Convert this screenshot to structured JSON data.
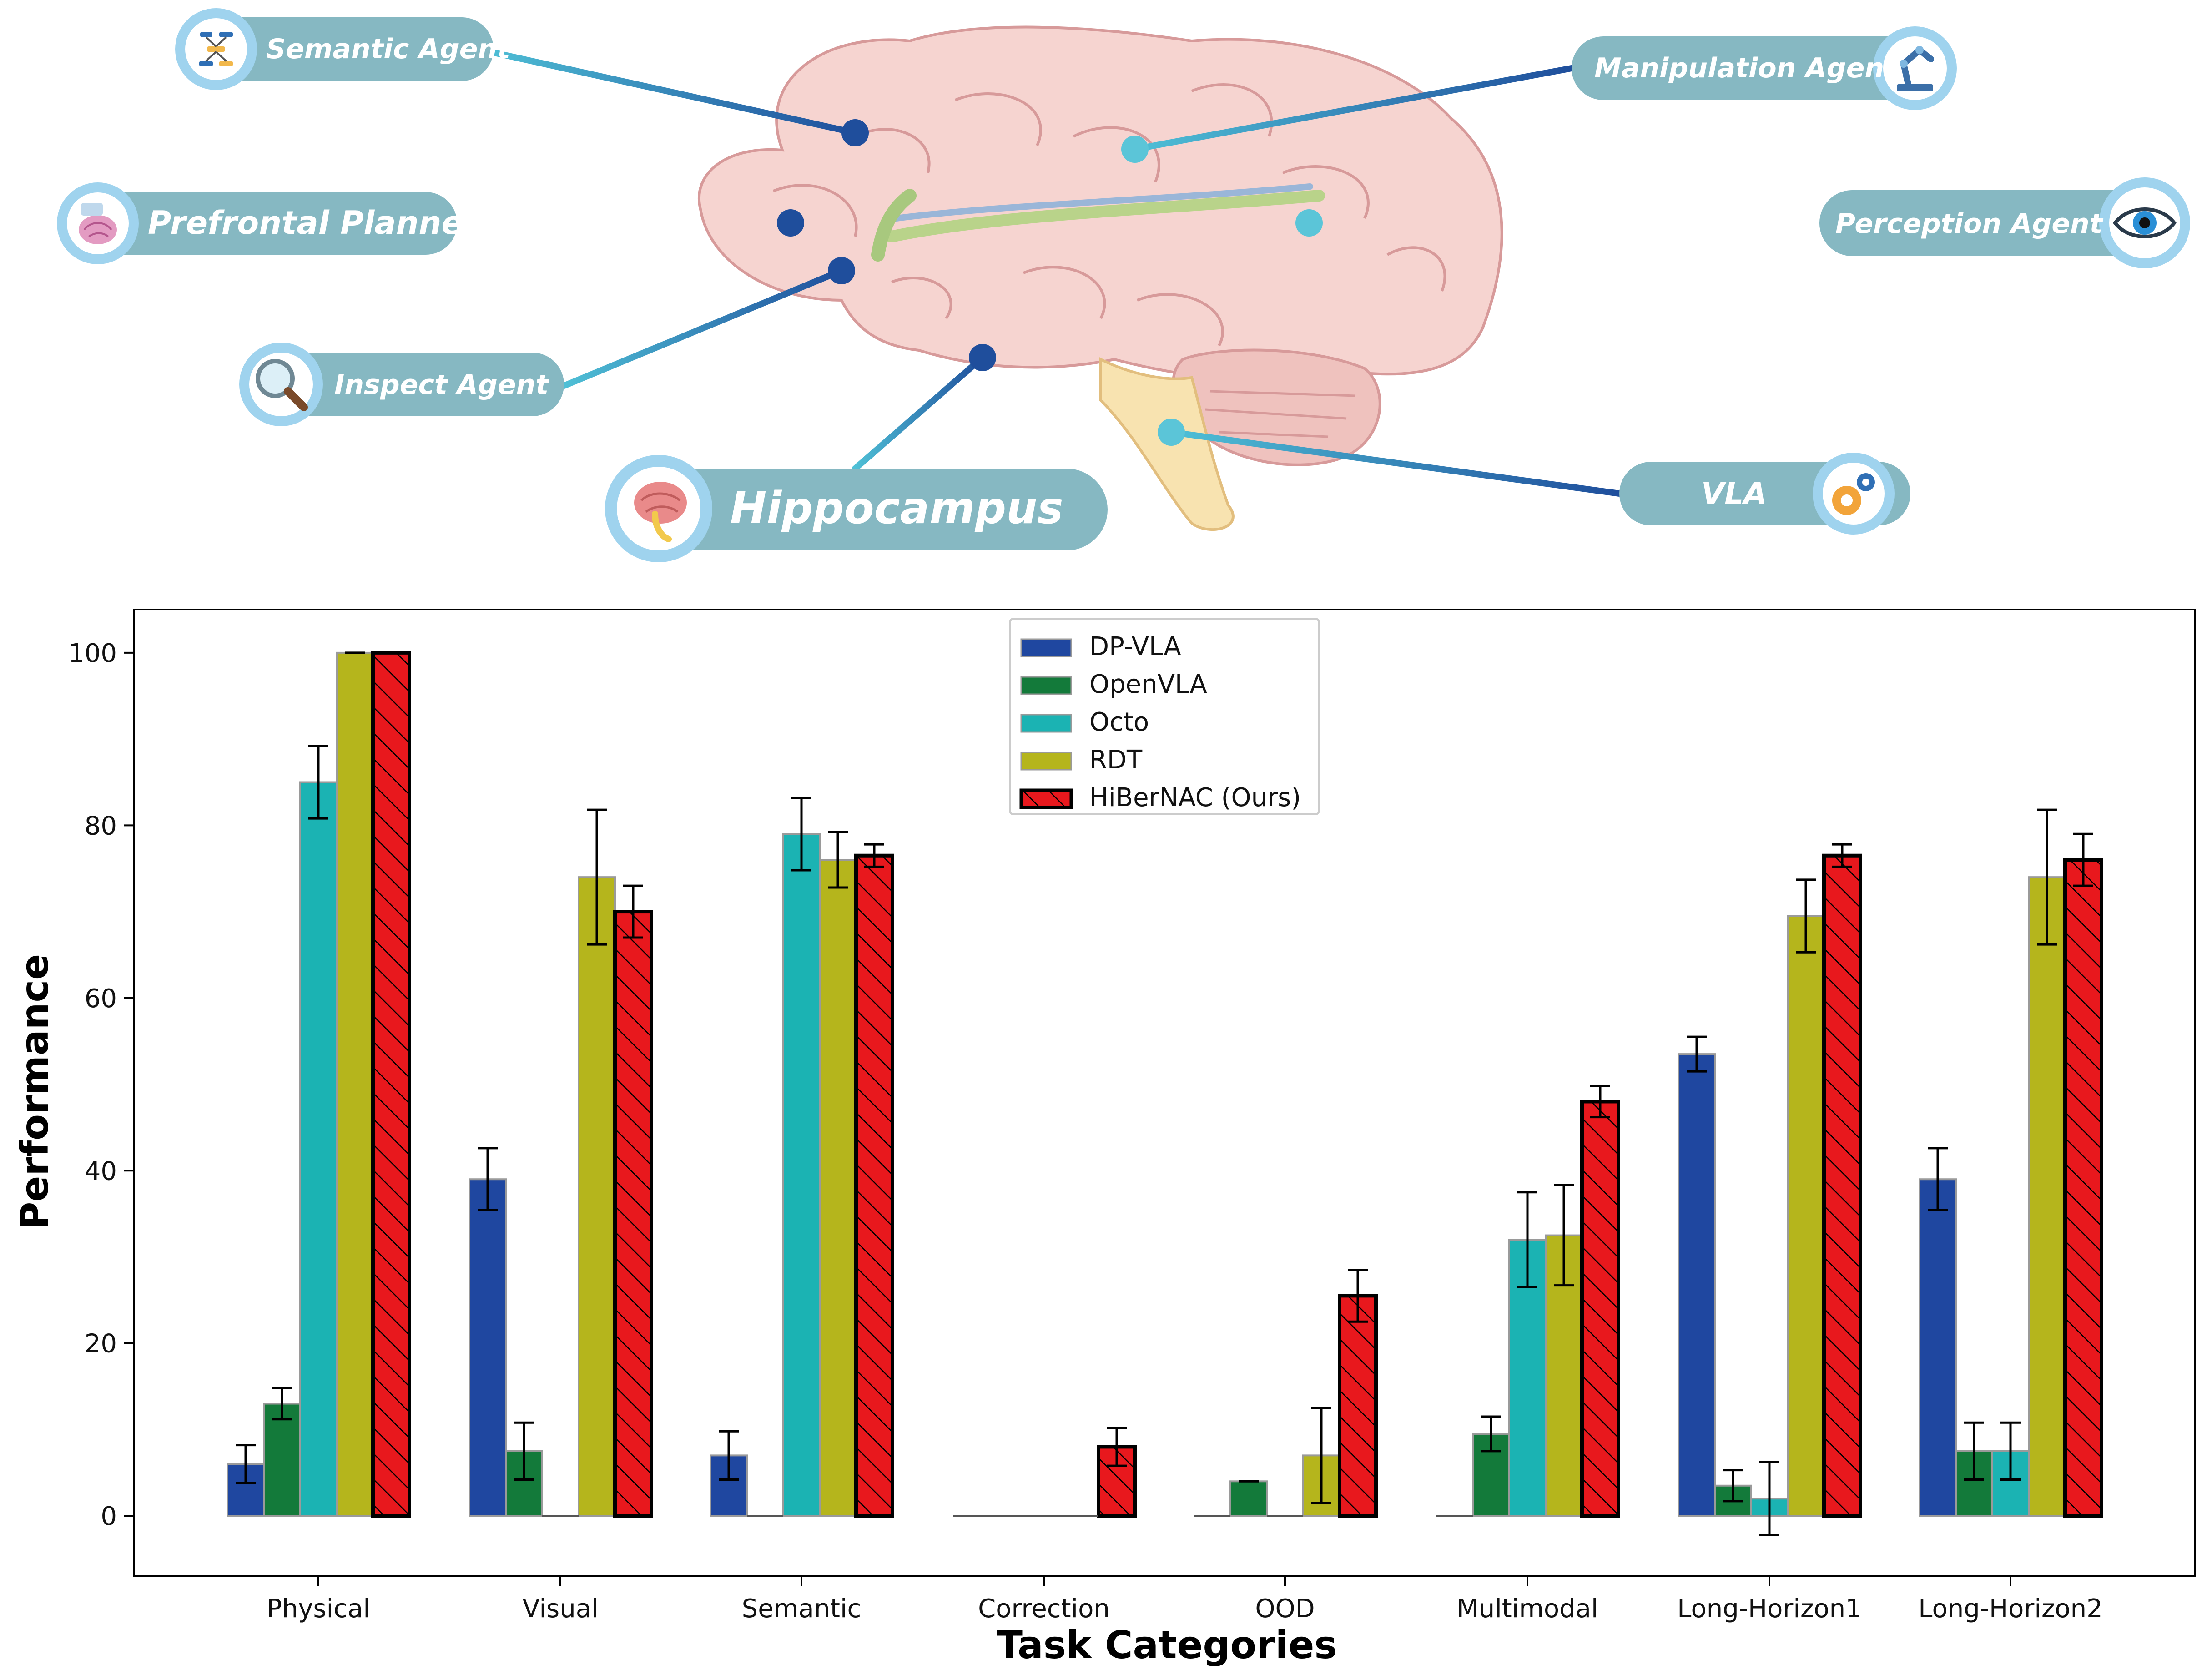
{
  "colors": {
    "pill_fill": "#86B8C2",
    "icon_ring": "#9FD3EE",
    "connector_light": "#4FC0D6",
    "connector_dark": "#1F4E9C",
    "brain_fill": "#F6D4D0",
    "brain_outline": "#D79A9A"
  },
  "diagram": {
    "agents": [
      {
        "label": "Semantic Agent",
        "icon": "mind-map-icon"
      },
      {
        "label": "Prefrontal Planner",
        "icon": "brain-chip-icon"
      },
      {
        "label": "Inspect  Agent",
        "icon": "magnifier-icon"
      },
      {
        "label": "Hippocampus",
        "icon": "hippocampus-brain-icon"
      },
      {
        "label": "Manipulation Agent",
        "icon": "robot-arm-icon"
      },
      {
        "label": "Perception Agent",
        "icon": "eye-icon"
      },
      {
        "label": "VLA",
        "icon": "gears-icon"
      }
    ]
  },
  "chart_data": {
    "type": "bar",
    "xlabel": "Task Categories",
    "ylabel": "Performance",
    "ylim": [
      -7,
      105
    ],
    "yticks": [
      0,
      20,
      40,
      60,
      80,
      100
    ],
    "grid": false,
    "legend_position": "top-center",
    "categories": [
      "Physical",
      "Visual",
      "Semantic",
      "Correction",
      "OOD",
      "Multimodal",
      "Long-Horizon1",
      "Long-Horizon2"
    ],
    "series": [
      {
        "name": "DP-VLA",
        "color": "#1F47A0",
        "hatch": false,
        "values": [
          6,
          39,
          7,
          0,
          0,
          0,
          53.5,
          39
        ],
        "errors": [
          2.2,
          3.6,
          2.8,
          0,
          0,
          0,
          2,
          3.6
        ]
      },
      {
        "name": "OpenVLA",
        "color": "#137A3A",
        "hatch": false,
        "values": [
          13,
          7.5,
          0,
          0,
          4,
          9.5,
          3.5,
          7.5
        ],
        "errors": [
          1.8,
          3.3,
          0,
          0,
          0,
          2,
          1.8,
          3.3
        ]
      },
      {
        "name": "Octo",
        "color": "#1BB3B3",
        "hatch": false,
        "values": [
          85,
          0,
          79,
          0,
          0,
          32,
          2,
          7.5
        ],
        "errors": [
          4.2,
          0,
          4.2,
          0,
          0,
          5.5,
          4.2,
          3.3
        ]
      },
      {
        "name": "RDT",
        "color": "#B5B51C",
        "hatch": false,
        "values": [
          100,
          74,
          76,
          0,
          7,
          32.5,
          69.5,
          74
        ],
        "errors": [
          0,
          7.8,
          3.2,
          0,
          5.5,
          5.8,
          4.2,
          7.8
        ]
      },
      {
        "name": "HiBerNAC (Ours)",
        "color": "#E8181D",
        "hatch": true,
        "values": [
          100,
          70,
          76.5,
          8,
          25.5,
          48,
          76.5,
          76
        ],
        "errors": [
          0,
          3,
          1.3,
          2.2,
          3,
          1.8,
          1.3,
          3
        ]
      }
    ]
  }
}
